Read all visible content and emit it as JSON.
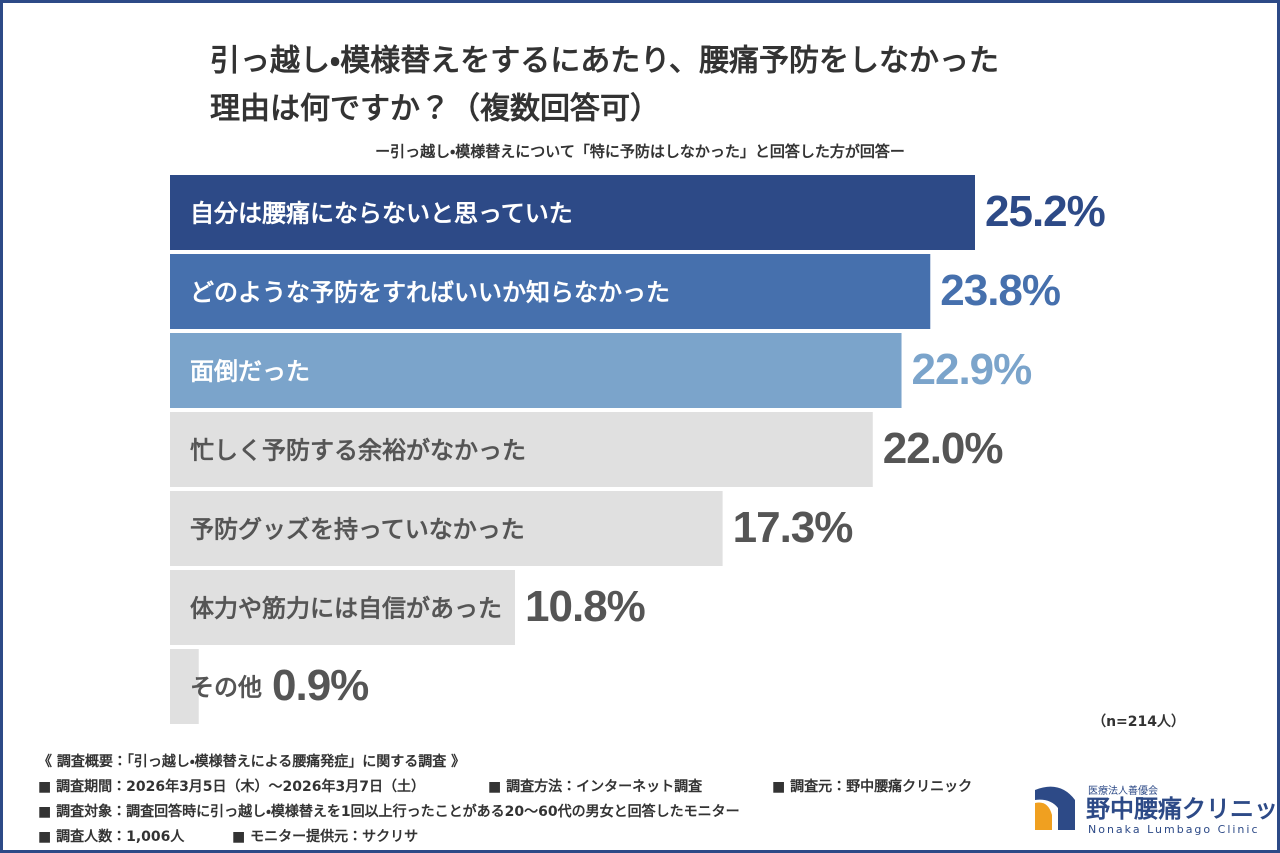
{
  "chart_data": {
    "type": "bar",
    "orientation": "horizontal",
    "title": [
      "引っ越し・模様替えをするにあたり、腰痛予防をしなかった",
      "理由は何ですか？（複数回答可）"
    ],
    "subtitle": "ー引っ越し・模様替えについて「特に予防はしなかった」と回答した方が回答ー",
    "categories": [
      "自分は腰痛にならないと思っていた",
      "どのような予防をすればいいか知らなかった",
      "面倒だった",
      "忙しく予防する余裕がなかった",
      "予防グッズを持っていなかった",
      "体力や筋力には自信があった",
      "その他"
    ],
    "values": [
      25.2,
      23.8,
      22.9,
      22,
      17.3,
      10.8,
      0.9
    ],
    "value_labels": [
      "25.2%",
      "23.8%",
      "22.9%",
      "22.0%",
      "17.3%",
      "10.8%",
      "0.9%"
    ],
    "colors": [
      "#2d4a87",
      "#4670ad",
      "#7ba4cb",
      "#e0e0e0",
      "#e0e0e0",
      "#e0e0e0",
      "#e0e0e0"
    ],
    "label_colors": [
      "#ffffff",
      "#ffffff",
      "#ffffff",
      "#555555",
      "#555555",
      "#555555",
      "#555555"
    ],
    "value_colors": [
      "#2d4a87",
      "#4670ad",
      "#7ba4cb",
      "#555555",
      "#555555",
      "#555555",
      "#555555"
    ],
    "note": "（n=214人）",
    "footnotes": [
      [
        "《 調査概要：「引っ越し・模様替えによる腰痛発症」に関する調査 》"
      ],
      [
        "■ 調査期間：2026年3月5日（木）～2026年3月7日（土）",
        "■ 調査方法：インターネット調査",
        "■ 調査元：野中腰痛クリニック"
      ],
      [
        "■ 調査対象：調査回答時に引っ越し・模様替えを1回以上行ったことがある20～60代の男女と回答したモニター"
      ],
      [
        "■ 調査人数：1,006人",
        "■ モニター提供元：サクリサ"
      ]
    ],
    "logo": {
      "org": "医療法人善優会",
      "name": "野中腰痛クリニック",
      "name_en": "Nonaka Lumbago Clinic"
    }
  }
}
